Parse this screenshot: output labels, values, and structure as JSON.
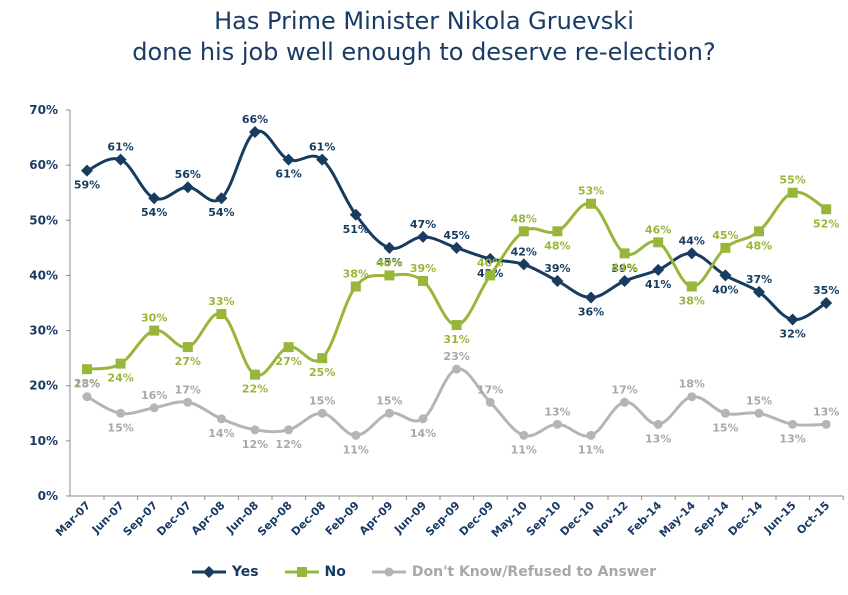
{
  "title_line1": "Has Prime Minister Nikola Gruevski",
  "title_line2": "done his job well enough to deserve re-election?",
  "chart_data": {
    "type": "line",
    "title": "Has Prime Minister Nikola Gruevski done his job well enough to deserve re-election?",
    "categories": [
      "Mar-07",
      "Jun-07",
      "Sep-07",
      "Dec-07",
      "Apr-08",
      "Jun-08",
      "Sep-08",
      "Dec-08",
      "Feb-09",
      "Apr-09",
      "Jun-09",
      "Sep-09",
      "Dec-09",
      "May-10",
      "Sep-10",
      "Dec-10",
      "Nov-12",
      "Feb-14",
      "May-14",
      "Sep-14",
      "Dec-14",
      "Jun-15",
      "Oct-15"
    ],
    "ylim": [
      0,
      70
    ],
    "yticks": [
      "0%",
      "10%",
      "20%",
      "30%",
      "40%",
      "50%",
      "60%",
      "70%"
    ],
    "legend_position": "bottom",
    "series": [
      {
        "name": "Yes",
        "color": "#173c60",
        "marker": "diamond",
        "values": [
          59,
          61,
          54,
          56,
          54,
          66,
          61,
          61,
          51,
          45,
          47,
          45,
          43,
          42,
          39,
          36,
          39,
          41,
          44,
          40,
          37,
          32,
          35
        ]
      },
      {
        "name": "No",
        "color": "#98b73a",
        "marker": "square",
        "values": [
          23,
          24,
          30,
          27,
          33,
          22,
          27,
          25,
          38,
          40,
          39,
          31,
          40,
          48,
          48,
          53,
          44,
          46,
          38,
          45,
          48,
          55,
          52
        ]
      },
      {
        "name": "Don't Know/Refused to Answer",
        "color": "#b5b5b5",
        "marker": "circle",
        "values": [
          18,
          15,
          16,
          17,
          14,
          12,
          12,
          15,
          11,
          15,
          14,
          23,
          17,
          11,
          13,
          11,
          17,
          13,
          18,
          15,
          15,
          13,
          13
        ]
      }
    ]
  }
}
